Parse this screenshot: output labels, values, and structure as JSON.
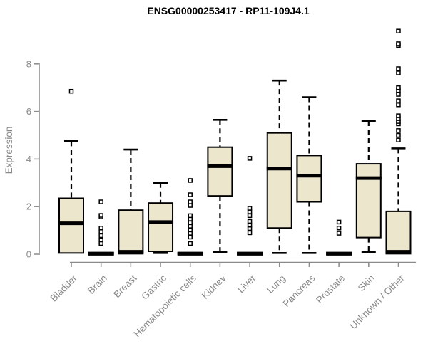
{
  "chart_data": {
    "type": "boxplot",
    "title": "ENSG00000253417 - RP11-109J4.1",
    "xlabel": "",
    "ylabel": "Expression",
    "ylim": [
      0,
      9.5
    ],
    "yticks": [
      0,
      2,
      4,
      6,
      8
    ],
    "grid": false,
    "legend": false,
    "categories": [
      "Bladder",
      "Brain",
      "Breast",
      "Gastric",
      "Hematopoietic cells",
      "Kidney",
      "Liver",
      "Lung",
      "Pancreas",
      "Prostate",
      "Skin",
      "Unknown / Other"
    ],
    "series": [
      {
        "category": "Bladder",
        "whisker_low": 0.05,
        "q1": 0.05,
        "median": 1.3,
        "q3": 2.35,
        "whisker_high": 4.75,
        "outliers": [
          6.85
        ]
      },
      {
        "category": "Brain",
        "whisker_low": 0,
        "q1": 0,
        "median": 0.02,
        "q3": 0.07,
        "whisker_high": 0.07,
        "outliers": [
          0.45,
          0.6,
          0.78,
          0.95,
          1.1,
          1.57,
          1.63,
          2.2
        ]
      },
      {
        "category": "Breast",
        "whisker_low": 0,
        "q1": 0.02,
        "median": 0.1,
        "q3": 1.85,
        "whisker_high": 4.4,
        "outliers": []
      },
      {
        "category": "Gastric",
        "whisker_low": 0.05,
        "q1": 0.12,
        "median": 1.35,
        "q3": 2.15,
        "whisker_high": 3.0,
        "outliers": []
      },
      {
        "category": "Hematopoietic cells",
        "whisker_low": 0,
        "q1": 0,
        "median": 0.02,
        "q3": 0.07,
        "whisker_high": 0.07,
        "outliers": [
          0.45,
          0.72,
          0.88,
          1.02,
          1.18,
          1.32,
          1.48,
          1.62,
          2.05,
          2.2,
          2.5,
          3.1
        ]
      },
      {
        "category": "Kidney",
        "whisker_low": 0.1,
        "q1": 2.45,
        "median": 3.7,
        "q3": 4.5,
        "whisker_high": 5.65,
        "outliers": []
      },
      {
        "category": "Liver",
        "whisker_low": 0,
        "q1": 0,
        "median": 0.02,
        "q3": 0.07,
        "whisker_high": 0.07,
        "outliers": [
          0.9,
          1.08,
          1.22,
          1.38,
          1.62,
          1.78,
          1.93,
          4.03
        ]
      },
      {
        "category": "Lung",
        "whisker_low": 0.05,
        "q1": 1.1,
        "median": 3.6,
        "q3": 5.1,
        "whisker_high": 7.3,
        "outliers": []
      },
      {
        "category": "Pancreas",
        "whisker_low": 0.05,
        "q1": 2.2,
        "median": 3.3,
        "q3": 4.15,
        "whisker_high": 6.6,
        "outliers": []
      },
      {
        "category": "Prostate",
        "whisker_low": 0,
        "q1": 0,
        "median": 0.02,
        "q3": 0.07,
        "whisker_high": 0.07,
        "outliers": [
          0.88,
          1.1,
          1.35
        ]
      },
      {
        "category": "Skin",
        "whisker_low": 0.1,
        "q1": 0.7,
        "median": 3.2,
        "q3": 3.8,
        "whisker_high": 5.6,
        "outliers": []
      },
      {
        "category": "Unknown / Other",
        "whisker_low": 0,
        "q1": 0.02,
        "median": 0.1,
        "q3": 1.8,
        "whisker_high": 4.45,
        "outliers": [
          4.8,
          5.0,
          5.2,
          5.48,
          5.58,
          5.7,
          5.82,
          6.28,
          6.45,
          6.72,
          6.88,
          7.0,
          7.62,
          7.8,
          8.78,
          8.85,
          9.38
        ]
      }
    ],
    "colors": {
      "box_fill": "#ece6cd",
      "box_border": "#000000",
      "median": "#000000",
      "whisker": "#000000",
      "outlier_fill": "#ffffff",
      "axis": "#8a8a8a",
      "tick_label": "#8a8a8a",
      "title": "#000000",
      "background": "#ffffff"
    }
  }
}
